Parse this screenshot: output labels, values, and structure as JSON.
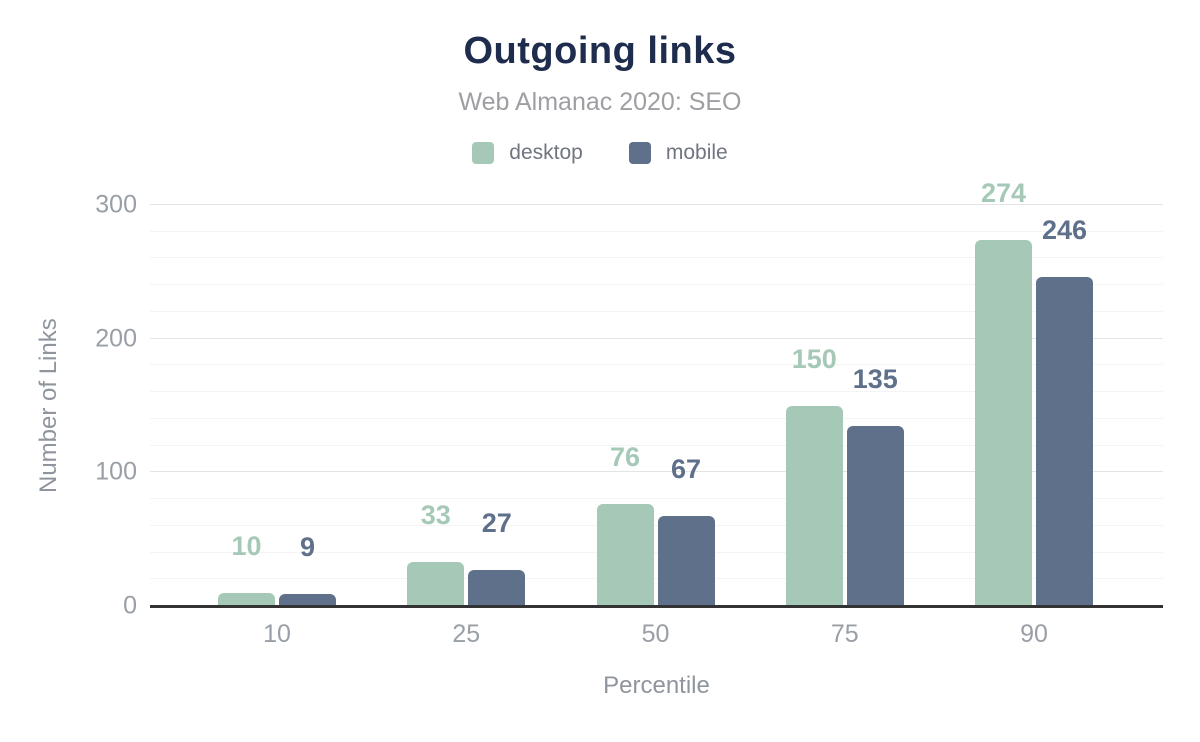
{
  "chart_data": {
    "type": "bar",
    "title": "Outgoing links",
    "subtitle": "Web Almanac 2020: SEO",
    "xlabel": "Percentile",
    "ylabel": "Number of Links",
    "categories": [
      "10",
      "25",
      "50",
      "75",
      "90"
    ],
    "series": [
      {
        "name": "desktop",
        "color": "#a6c9b7",
        "values": [
          10,
          33,
          76,
          150,
          274
        ]
      },
      {
        "name": "mobile",
        "color": "#5f708b",
        "values": [
          9,
          27,
          67,
          135,
          246
        ]
      }
    ],
    "ylim": [
      0,
      300
    ],
    "yticks": [
      0,
      100,
      200,
      300
    ],
    "minor_grid_step": 20,
    "grid": true,
    "legend_position": "top",
    "bar_value_labels": true
  },
  "styles": {
    "title_color": "#1e2c4d",
    "subtitle_color": "#9e9ea3",
    "axis_text_color": "#999fa6",
    "legend_text_color": "#6f7680",
    "grid_major_color": "#e4e4e4",
    "grid_minor_color": "#f4f4f4",
    "axis_line_color": "#333333",
    "background_color": "#ffffff"
  }
}
